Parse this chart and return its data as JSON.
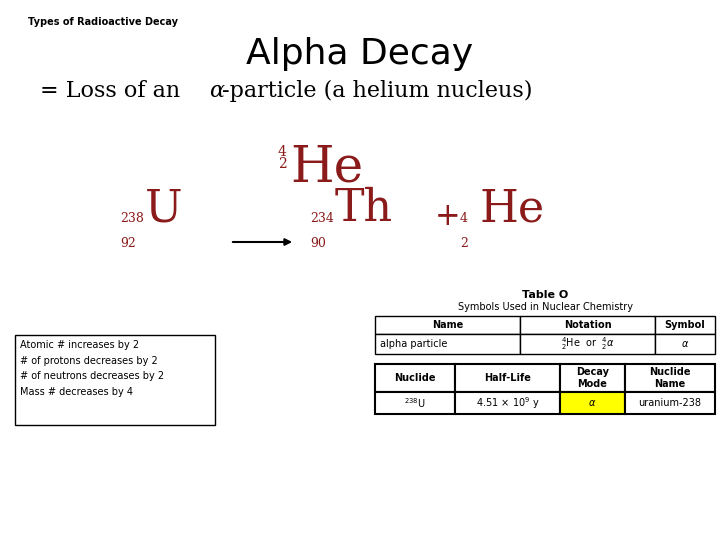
{
  "bg_color": "#ffffff",
  "header_text": "Types of Radioactive Decay",
  "title_text": "Alpha Decay",
  "dark_red": "#8B1A1A",
  "black": "#000000",
  "note_text": "Atomic # increases by 2\n# of protons decreases by 2\n# of neutrons decreases by 2\nMass # decreases by 4",
  "yellow": "#ffff00",
  "title_fontsize": 26,
  "header_fontsize": 7,
  "subtitle_fontsize": 16,
  "eq_large_fontsize": 32,
  "eq_small_fontsize": 9,
  "he_large_fontsize": 36,
  "he_small_fontsize": 10,
  "note_fontsize": 7,
  "table_fontsize": 7
}
